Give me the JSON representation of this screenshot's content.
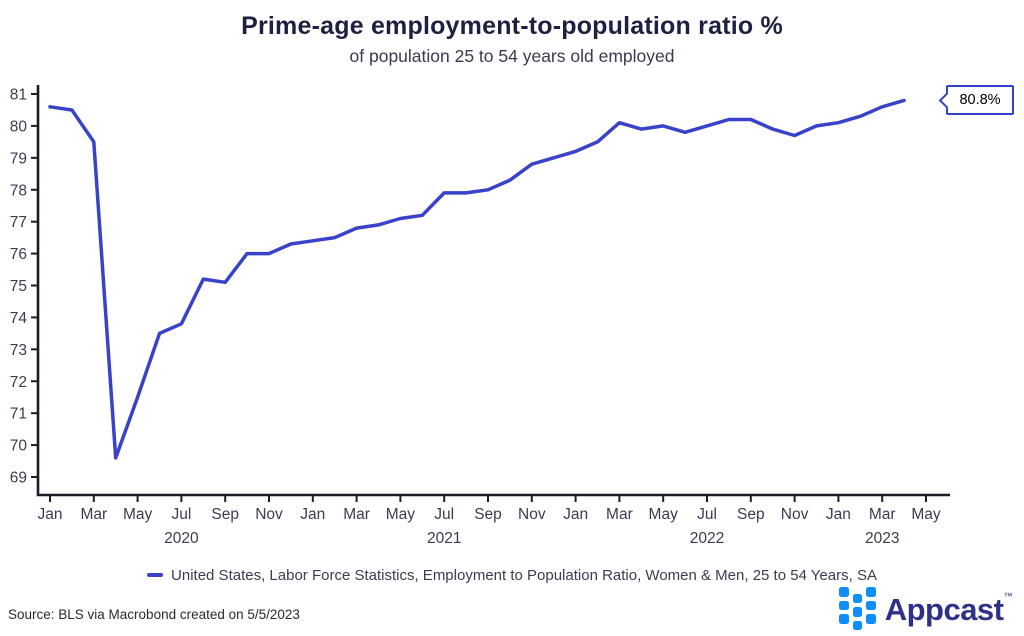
{
  "chart_data": {
    "type": "line",
    "title": "Prime-age employment-to-population ratio %",
    "subtitle": "of population 25 to 54 years old employed",
    "series_name": "United States, Labor Force Statistics, Employment to Population Ratio, Women & Men, 25 to 54 Years, SA",
    "months": [
      "Jan 2020",
      "Feb 2020",
      "Mar 2020",
      "Apr 2020",
      "May 2020",
      "Jun 2020",
      "Jul 2020",
      "Aug 2020",
      "Sep 2020",
      "Oct 2020",
      "Nov 2020",
      "Dec 2020",
      "Jan 2021",
      "Feb 2021",
      "Mar 2021",
      "Apr 2021",
      "May 2021",
      "Jun 2021",
      "Jul 2021",
      "Aug 2021",
      "Sep 2021",
      "Oct 2021",
      "Nov 2021",
      "Dec 2021",
      "Jan 2022",
      "Feb 2022",
      "Mar 2022",
      "Apr 2022",
      "May 2022",
      "Jun 2022",
      "Jul 2022",
      "Aug 2022",
      "Sep 2022",
      "Oct 2022",
      "Nov 2022",
      "Dec 2022",
      "Jan 2023",
      "Feb 2023",
      "Mar 2023",
      "Apr 2023"
    ],
    "values": [
      80.6,
      80.5,
      79.5,
      69.6,
      71.5,
      73.5,
      73.8,
      75.2,
      75.1,
      76.0,
      76.0,
      76.3,
      76.4,
      76.5,
      76.8,
      76.9,
      77.1,
      77.2,
      77.9,
      77.9,
      78.0,
      78.3,
      78.8,
      79.0,
      79.2,
      79.5,
      80.1,
      79.9,
      80.0,
      79.8,
      80.0,
      80.2,
      80.2,
      79.9,
      79.7,
      80.0,
      80.1,
      80.3,
      80.6,
      80.8
    ],
    "axis_extra_month": "May 2023",
    "ylim": [
      69,
      81
    ],
    "yticks": [
      69,
      70,
      71,
      72,
      73,
      74,
      75,
      76,
      77,
      78,
      79,
      80,
      81
    ],
    "xticks": [
      {
        "m": 0,
        "label": "Jan"
      },
      {
        "m": 2,
        "label": "Mar"
      },
      {
        "m": 4,
        "label": "May"
      },
      {
        "m": 6,
        "label": "Jul"
      },
      {
        "m": 8,
        "label": "Sep"
      },
      {
        "m": 10,
        "label": "Nov"
      },
      {
        "m": 12,
        "label": "Jan"
      },
      {
        "m": 14,
        "label": "Mar"
      },
      {
        "m": 16,
        "label": "May"
      },
      {
        "m": 18,
        "label": "Jul"
      },
      {
        "m": 20,
        "label": "Sep"
      },
      {
        "m": 22,
        "label": "Nov"
      },
      {
        "m": 24,
        "label": "Jan"
      },
      {
        "m": 26,
        "label": "Mar"
      },
      {
        "m": 28,
        "label": "May"
      },
      {
        "m": 30,
        "label": "Jul"
      },
      {
        "m": 32,
        "label": "Sep"
      },
      {
        "m": 34,
        "label": "Nov"
      },
      {
        "m": 36,
        "label": "Jan"
      },
      {
        "m": 38,
        "label": "Mar"
      },
      {
        "m": 40,
        "label": "May"
      }
    ],
    "year_ticks": [
      {
        "m": 6,
        "label": "2020"
      },
      {
        "m": 18,
        "label": "2021"
      },
      {
        "m": 30,
        "label": "2022"
      },
      {
        "m": 38,
        "label": "2023"
      }
    ],
    "last_value_label": "80.8%",
    "grid": false,
    "legend_position": "bottom"
  },
  "footer": {
    "source": "Source: BLS via Macrobond created on 5/5/2023",
    "brand": "Appcast",
    "brand_tm": "™",
    "logo_icon": "appcast-squares-icon"
  },
  "colors": {
    "line": "#3943c9",
    "axis": "#1c1c28",
    "tick_text": "#3c3c50",
    "title_text": "#1e2040",
    "subtitle_text": "#3a3a4e",
    "source_text": "#2a2a33",
    "callout_border": "#3340c8",
    "callout_text": "#000000",
    "logo_square_blue": "#0f8dfb",
    "logo_wordmark": "#2e3187",
    "background": "#ffffff"
  }
}
